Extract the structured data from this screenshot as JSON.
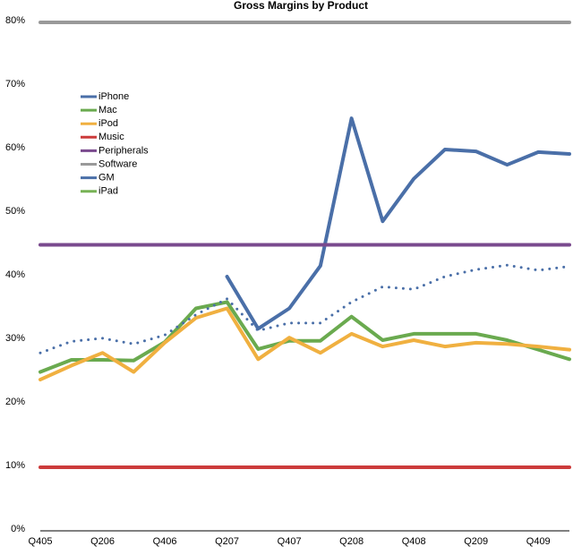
{
  "chart_data": {
    "type": "line",
    "title": "Gross Margins by Product",
    "categories": [
      "Q405",
      null,
      "Q206",
      null,
      "Q406",
      null,
      "Q207",
      null,
      "Q407",
      null,
      "Q208",
      null,
      "Q408",
      null,
      "Q209",
      null,
      "Q409",
      null
    ],
    "ylim": [
      0,
      80
    ],
    "yticks": [
      {
        "value": 0,
        "label": "0%"
      },
      {
        "value": 10,
        "label": "10%"
      },
      {
        "value": 20,
        "label": "20%"
      },
      {
        "value": 30,
        "label": "30%"
      },
      {
        "value": 40,
        "label": "40%"
      },
      {
        "value": 50,
        "label": "50%"
      },
      {
        "value": 60,
        "label": "60%"
      },
      {
        "value": 70,
        "label": "70%"
      },
      {
        "value": 80,
        "label": "80%"
      }
    ],
    "legend": "upper-left",
    "series": [
      {
        "name": "iPhone",
        "color": "#4a6fa8",
        "values": [
          null,
          null,
          null,
          null,
          null,
          null,
          40,
          31.8,
          35,
          41.7,
          64.9,
          48.7,
          55.4,
          60,
          59.7,
          57.6,
          59.6,
          59.3
        ]
      },
      {
        "name": "Mac",
        "color": "#6aaa4f",
        "values": [
          25,
          26.9,
          26.9,
          26.8,
          29.7,
          35,
          36,
          28.6,
          29.9,
          29.9,
          33.7,
          30,
          31,
          31,
          31,
          30,
          28.5,
          27
        ]
      },
      {
        "name": "iPod",
        "color": "#f0b040",
        "values": [
          23.8,
          26,
          28,
          25,
          29.6,
          33.5,
          35,
          27,
          30.4,
          28,
          31,
          29,
          30,
          29,
          29.6,
          29.4,
          29,
          28.5
        ]
      },
      {
        "name": "Music",
        "color": "#cc3b3b",
        "values": [
          10,
          10,
          10,
          10,
          10,
          10,
          10,
          10,
          10,
          10,
          10,
          10,
          10,
          10,
          10,
          10,
          10,
          10
        ]
      },
      {
        "name": "Peripherals",
        "color": "#7a4a8e",
        "values": [
          45,
          45,
          45,
          45,
          45,
          45,
          45,
          45,
          45,
          45,
          45,
          45,
          45,
          45,
          45,
          45,
          45,
          45
        ]
      },
      {
        "name": "Software",
        "color": "#999999",
        "values": [
          80,
          80,
          80,
          80,
          80,
          80,
          80,
          80,
          80,
          80,
          80,
          80,
          80,
          80,
          80,
          80,
          80,
          80
        ]
      },
      {
        "name": "GM",
        "color": "#4a6fa8",
        "style": "dotted",
        "values": [
          28,
          29.8,
          30.3,
          29.4,
          30.8,
          34,
          36.5,
          31.5,
          32.7,
          32.7,
          36,
          38.4,
          38,
          40,
          41.1,
          41.8,
          41,
          41.6
        ]
      },
      {
        "name": "iPad",
        "color": "#77b255",
        "values": [
          null,
          null,
          null,
          null,
          null,
          null,
          null,
          null,
          null,
          null,
          null,
          null,
          null,
          null,
          null,
          null,
          null,
          null
        ]
      }
    ]
  }
}
